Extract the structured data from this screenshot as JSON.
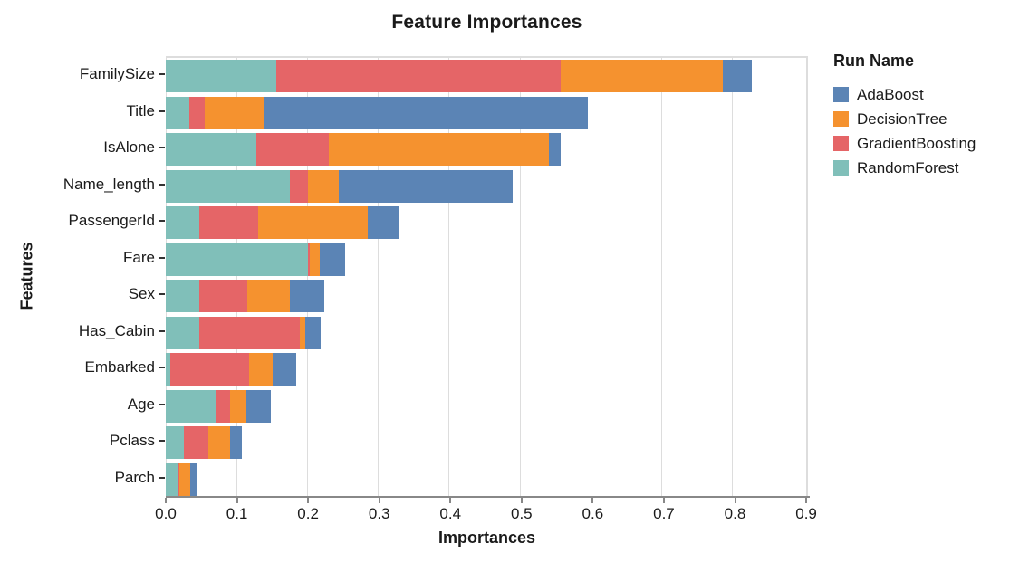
{
  "title": "Feature Importances",
  "axes": {
    "x_label": "Importances",
    "y_label": "Features",
    "x_ticks": [
      "0.0",
      "0.1",
      "0.2",
      "0.3",
      "0.4",
      "0.5",
      "0.6",
      "0.7",
      "0.8",
      "0.9"
    ]
  },
  "legend": {
    "title": "Run Name",
    "items": [
      {
        "label": "AdaBoost",
        "color": "#5b84b5"
      },
      {
        "label": "DecisionTree",
        "color": "#f5922f"
      },
      {
        "label": "GradientBoosting",
        "color": "#e56567"
      },
      {
        "label": "RandomForest",
        "color": "#80bfb9"
      }
    ]
  },
  "chart_data": {
    "type": "bar",
    "orientation": "horizontal",
    "stacked": true,
    "title": "Feature Importances",
    "xlabel": "Importances",
    "ylabel": "Features",
    "xlim": [
      0,
      0.905
    ],
    "x_tick_step": 0.1,
    "grid": true,
    "legend_position": "right",
    "legend_title": "Run Name",
    "categories": [
      "FamilySize",
      "Title",
      "IsAlone",
      "Name_length",
      "PassengerId",
      "Fare",
      "Sex",
      "Has_Cabin",
      "Embarked",
      "Age",
      "Pclass",
      "Parch"
    ],
    "stack_order_note": "segments drawn left-to-right: RandomForest, GradientBoosting, DecisionTree, AdaBoost",
    "series": [
      {
        "name": "RandomForest",
        "color": "#80bfb9",
        "values": [
          0.156,
          0.033,
          0.128,
          0.175,
          0.048,
          0.201,
          0.048,
          0.047,
          0.007,
          0.071,
          0.025,
          0.017
        ]
      },
      {
        "name": "GradientBoosting",
        "color": "#e56567",
        "values": [
          0.402,
          0.022,
          0.103,
          0.026,
          0.083,
          0.002,
          0.067,
          0.142,
          0.111,
          0.02,
          0.035,
          0.002
        ]
      },
      {
        "name": "DecisionTree",
        "color": "#f5922f",
        "values": [
          0.229,
          0.085,
          0.31,
          0.044,
          0.154,
          0.015,
          0.06,
          0.008,
          0.033,
          0.023,
          0.031,
          0.016
        ]
      },
      {
        "name": "AdaBoost",
        "color": "#5b84b5",
        "values": [
          0.041,
          0.456,
          0.017,
          0.245,
          0.045,
          0.035,
          0.049,
          0.022,
          0.033,
          0.035,
          0.016,
          0.008
        ]
      }
    ],
    "totals": [
      0.828,
      0.596,
      0.558,
      0.49,
      0.33,
      0.253,
      0.224,
      0.219,
      0.184,
      0.149,
      0.107,
      0.043
    ]
  },
  "style": {
    "gridline_color": "#dddddd",
    "axis_line_color": "#888888",
    "text_color": "#1a1a1a",
    "background": "#ffffff"
  }
}
